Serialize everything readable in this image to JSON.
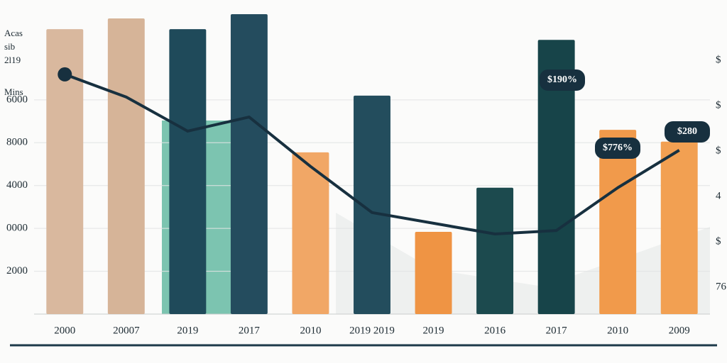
{
  "chart_data": {
    "type": "bar",
    "y_axis_label_lines": [
      "Acas",
      "sib",
      "2l19",
      "Mins"
    ],
    "categories": [
      "2000",
      "20007",
      "2019",
      "2017",
      "2010",
      "2019 2019",
      "2019",
      "2016",
      "2017",
      "2010",
      "2009"
    ],
    "values": [
      13300,
      13800,
      13300,
      14000,
      7550,
      10200,
      3840,
      5900,
      12800,
      8600,
      8050
    ],
    "colors": [
      "#d9b89e",
      "#d6b498",
      "#1f4a5a",
      "#244c5e",
      "#f1a766",
      "#234d5d",
      "#ef9444",
      "#1c4a4e",
      "#174449",
      "#f19a4b",
      "#f2a052"
    ],
    "line": {
      "color": "#17303f",
      "values": [
        11190,
        10130,
        8540,
        9200,
        6890,
        4740,
        4240,
        3740,
        3900,
        5900,
        7650
      ]
    },
    "annotations": [
      "$190%",
      "$776%",
      "$280"
    ],
    "y2_labels": [
      "$",
      "$",
      "$",
      "4",
      "$",
      "76"
    ],
    "ylim": [
      0,
      14000
    ],
    "yticks": [
      2000,
      {
        "value": 4000,
        "label": "0000"
      },
      {
        "value": 6000,
        "label": "4000"
      },
      8000,
      {
        "value": 10000,
        "label": "6000"
      }
    ],
    "grid": true
  }
}
